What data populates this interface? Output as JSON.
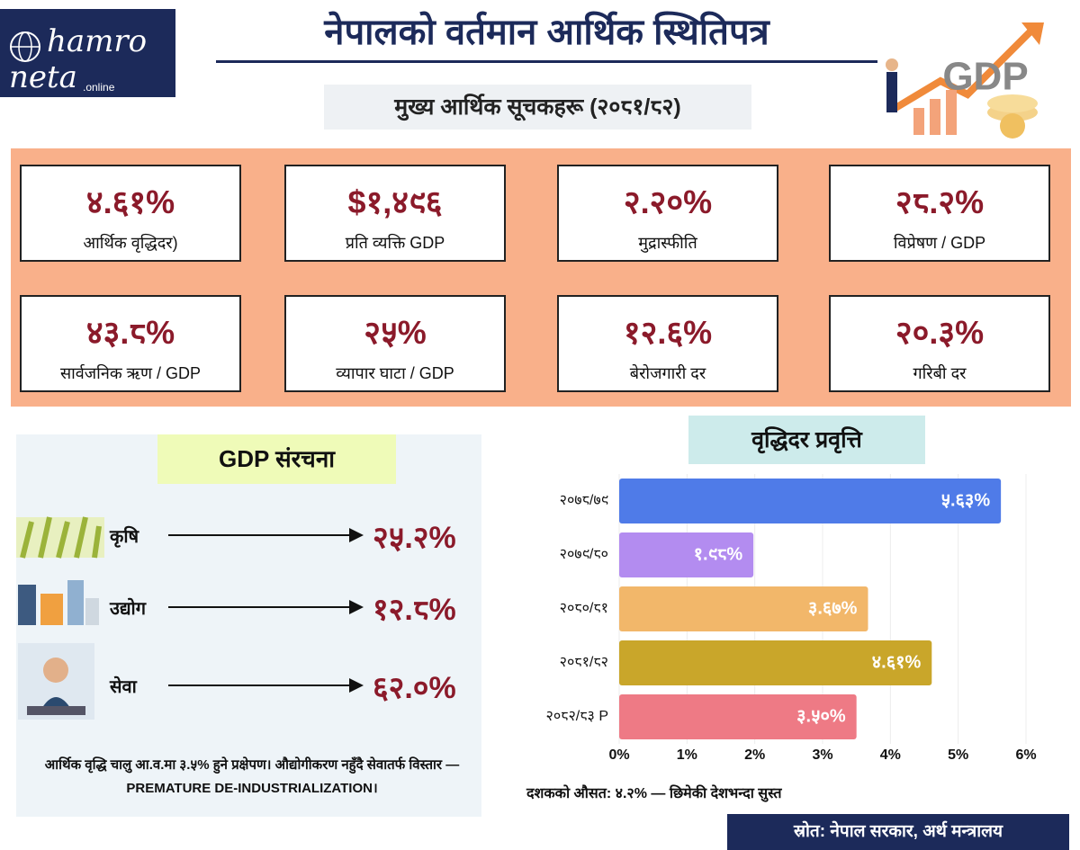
{
  "logo": {
    "line1": "hamro",
    "line2": "neta",
    "line3": ".online"
  },
  "header": {
    "title": "नेपालको वर्तमान आर्थिक स्थितिपत्र",
    "subtitle": "मुख्य आर्थिक सूचकहरू (२०८१/८२)",
    "art_label": "GDP"
  },
  "indicators": [
    {
      "value": "४.६१%",
      "label": "आर्थिक वृद्धिदर)"
    },
    {
      "value": "$१,४९६",
      "label": "प्रति व्यक्ति GDP"
    },
    {
      "value": "२.२०%",
      "label": "मुद्रास्फीति"
    },
    {
      "value": "२८.२%",
      "label": "विप्रेषण / GDP"
    },
    {
      "value": "४३.८%",
      "label": "सार्वजनिक ऋण / GDP"
    },
    {
      "value": "२५%",
      "label": "व्यापार घाटा / GDP"
    },
    {
      "value": "१२.६%",
      "label": "बेरोजगारी दर"
    },
    {
      "value": "२०.३%",
      "label": "गरिबी दर"
    }
  ],
  "composition": {
    "title": "GDP संरचना",
    "items": [
      {
        "name": "कृषि",
        "value": "२५.२%"
      },
      {
        "name": "उद्योग",
        "value": "१२.८%"
      },
      {
        "name": "सेवा",
        "value": "६२.०%"
      }
    ],
    "note": "आर्थिक वृद्धि चालु आ.व.मा ३.५% हुने प्रक्षेपण। औद्योगीकरण नहुँदै सेवातर्फ विस्तार — PREMATURE DE-INDUSTRIALIZATION।"
  },
  "chart_data": {
    "type": "barh",
    "title": "वृद्धिदर प्रवृत्ति",
    "categories": [
      "२०७८/७९",
      "२०७९/८०",
      "२०८०/८१",
      "२०८१/८२",
      "२०८२/८३ P"
    ],
    "values": [
      5.63,
      1.98,
      3.67,
      4.61,
      3.5
    ],
    "value_labels": [
      "५.६३%",
      "१.९८%",
      "३.६७%",
      "४.६१%",
      "३.५०%"
    ],
    "colors": [
      "#4f7be8",
      "#b38cf0",
      "#f2b76a",
      "#c9a62a",
      "#ee7a85"
    ],
    "xlim": [
      0,
      6
    ],
    "xticks": [
      {
        "value": 0,
        "label": "0%"
      },
      {
        "value": 1,
        "label": "1%"
      },
      {
        "value": 2,
        "label": "2%"
      },
      {
        "value": 3,
        "label": "3%"
      },
      {
        "value": 4,
        "label": "4%"
      },
      {
        "value": 5,
        "label": "5%"
      },
      {
        "value": 6,
        "label": "6%"
      }
    ],
    "grid": true,
    "note": "दशकको औसत: ४.२% — छिमेकी देशभन्दा सुस्त"
  },
  "footer": {
    "source": "स्रोत: नेपाल सरकार, अर्थ मन्त्रालय"
  }
}
